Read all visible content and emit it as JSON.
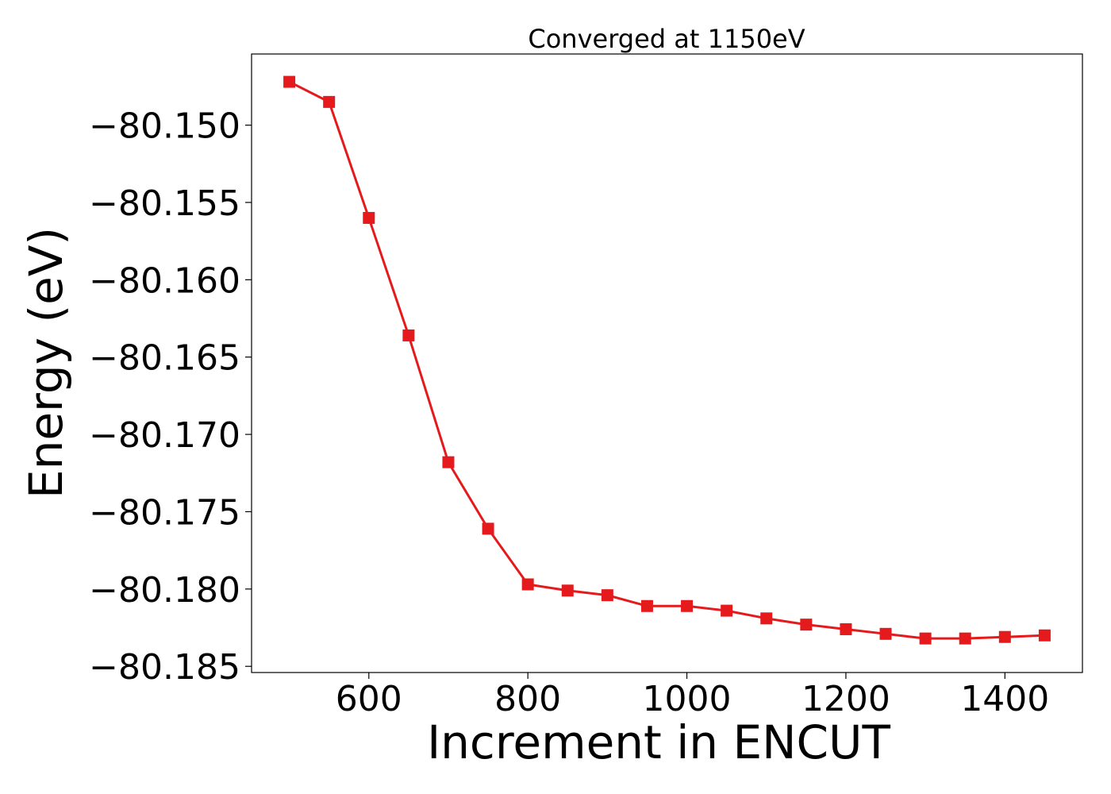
{
  "chart_data": {
    "type": "line",
    "title": "Converged at 1150eV",
    "xlabel": "Increment in ENCUT",
    "ylabel": "Energy (eV)",
    "xlim": [
      452.5,
      1497.5
    ],
    "ylim": [
      -80.1854,
      -80.1454
    ],
    "xticks": [
      600,
      800,
      1000,
      1200,
      1400
    ],
    "xtick_labels": [
      "600",
      "800",
      "1000",
      "1200",
      "1400"
    ],
    "yticks": [
      -80.15,
      -80.155,
      -80.16,
      -80.165,
      -80.17,
      -80.175,
      -80.18,
      -80.185
    ],
    "ytick_labels": [
      "−80.150",
      "−80.155",
      "−80.160",
      "−80.165",
      "−80.170",
      "−80.175",
      "−80.180",
      "−80.185"
    ],
    "grid": false,
    "color": "#e41a1c",
    "marker": "square",
    "series": [
      {
        "x": [
          500,
          550,
          600,
          650,
          700,
          750,
          800,
          850,
          900,
          950,
          1000,
          1050,
          1100,
          1150,
          1200,
          1250,
          1300,
          1350,
          1400,
          1450
        ],
        "y": [
          -80.1472,
          -80.1485,
          -80.156,
          -80.1636,
          -80.1718,
          -80.1761,
          -80.1797,
          -80.1801,
          -80.1804,
          -80.1811,
          -80.1811,
          -80.1814,
          -80.1819,
          -80.1823,
          -80.1826,
          -80.1829,
          -80.1832,
          -80.1832,
          -80.1831,
          -80.183
        ]
      }
    ]
  }
}
